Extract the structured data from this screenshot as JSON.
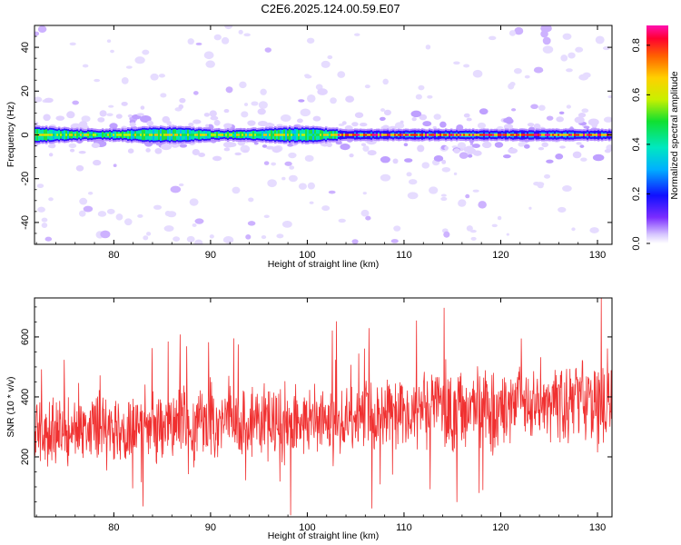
{
  "title": "C2E6.2025.124.00.59.E07",
  "chart_data": [
    {
      "type": "heatmap",
      "xlabel": "Height of straight line (km)",
      "ylabel": "Frequency (Hz)",
      "xlim": [
        71.8,
        131.5
      ],
      "ylim": [
        -50,
        50
      ],
      "xticks": [
        80,
        90,
        100,
        110,
        120,
        130
      ],
      "yticks": [
        -40,
        -20,
        0,
        20,
        40
      ],
      "colorbar": {
        "label": "Normalized spectral amplitude",
        "range": [
          0.0,
          0.88
        ],
        "ticks": [
          "0.0",
          "0.2",
          "0.4",
          "0.6",
          "0.8"
        ]
      },
      "description_points": {
        "band_center_hz": 0,
        "band_halfwidth_hz": 3,
        "band_change_km": 103
      }
    },
    {
      "type": "line",
      "xlabel": "Height of straight line (km)",
      "ylabel": "SNR (10 * v/v)",
      "xlim": [
        71.8,
        131.5
      ],
      "ylim": [
        0,
        730
      ],
      "xticks": [
        80,
        90,
        100,
        110,
        120,
        130
      ],
      "yticks": [
        200,
        400,
        600
      ],
      "series_color": "#f03030",
      "trend": {
        "x": [
          72,
          103,
          131.5
        ],
        "mean": [
          290,
          330,
          390
        ],
        "spread": [
          110,
          120,
          140
        ]
      }
    }
  ]
}
